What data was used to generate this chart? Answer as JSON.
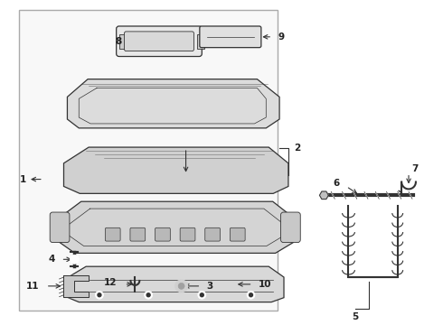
{
  "bg_color": "#ffffff",
  "box_bg": "#f5f5f5",
  "line_color": "#333333",
  "text_color": "#222222",
  "part_fill": "#e8e8e8",
  "part_fill2": "#d8d8d8",
  "border_lw": 1.0,
  "label_fs": 7.5,
  "fig_w": 4.9,
  "fig_h": 3.6,
  "dpi": 100
}
